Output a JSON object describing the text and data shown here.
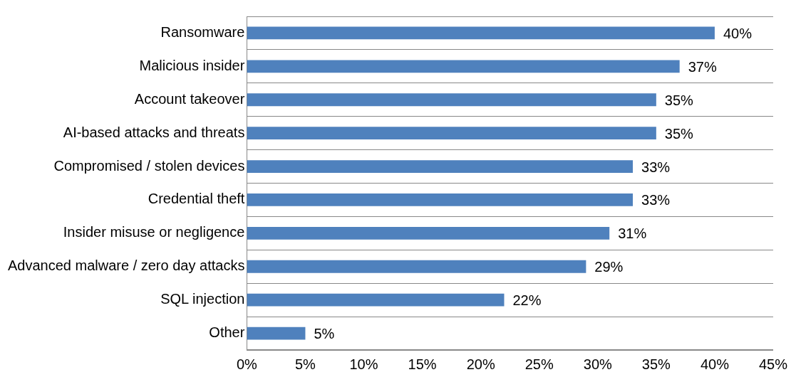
{
  "chart_data": {
    "type": "bar",
    "orientation": "horizontal",
    "categories": [
      "Ransomware",
      "Malicious insider",
      "Account takeover",
      "AI-based attacks and threats",
      "Compromised / stolen devices",
      "Credential theft",
      "Insider misuse or negligence",
      "Advanced malware / zero day attacks",
      "SQL injection",
      "Other"
    ],
    "values": [
      40,
      37,
      35,
      35,
      33,
      33,
      31,
      29,
      22,
      5
    ],
    "value_labels": [
      "40%",
      "37%",
      "35%",
      "35%",
      "33%",
      "33%",
      "31%",
      "29%",
      "22%",
      "5%"
    ],
    "color": "#4f81bd",
    "xlim": [
      0,
      45
    ],
    "xticks": [
      {
        "value": 0,
        "label": "0%"
      },
      {
        "value": 5,
        "label": "5%"
      },
      {
        "value": 10,
        "label": "10%"
      },
      {
        "value": 15,
        "label": "15%"
      },
      {
        "value": 20,
        "label": "20%"
      },
      {
        "value": 25,
        "label": "25%"
      },
      {
        "value": 30,
        "label": "30%"
      },
      {
        "value": 35,
        "label": "35%"
      },
      {
        "value": 40,
        "label": "40%"
      },
      {
        "value": 45,
        "label": "45%"
      }
    ],
    "grid": "y",
    "legend": false
  }
}
